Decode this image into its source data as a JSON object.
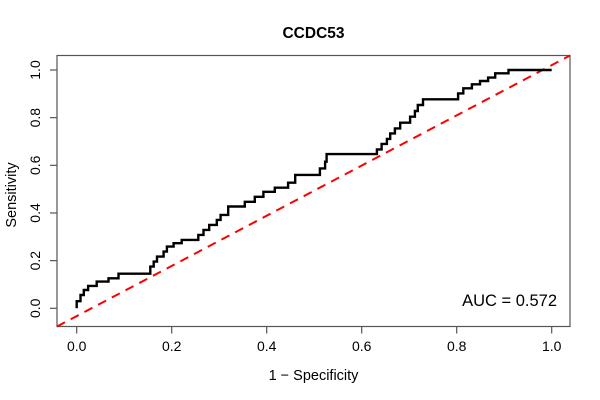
{
  "chart_data": {
    "type": "line",
    "title": "CCDC53",
    "xlabel": "1 − Specificity",
    "ylabel": "Sensitivity",
    "auc_label": "AUC = 0.572",
    "auc": 0.572,
    "xlim": [
      0,
      1
    ],
    "ylim": [
      0,
      1
    ],
    "grid": false,
    "legend_position": "none",
    "x_ticks": [
      0.0,
      0.2,
      0.4,
      0.6,
      0.8,
      1.0
    ],
    "y_ticks": [
      0.0,
      0.2,
      0.4,
      0.6,
      0.8,
      1.0
    ],
    "x_tick_labels": [
      "0.0",
      "0.2",
      "0.4",
      "0.6",
      "0.8",
      "1.0"
    ],
    "y_tick_labels": [
      "0.0",
      "0.2",
      "0.4",
      "0.6",
      "0.8",
      "1.0"
    ],
    "series": [
      {
        "name": "roc-step-curve",
        "style": "step",
        "color": "#000000",
        "line_width": 2.4,
        "points": [
          [
            0.0,
            0.0
          ],
          [
            0.0,
            0.03
          ],
          [
            0.008,
            0.056
          ],
          [
            0.015,
            0.077
          ],
          [
            0.024,
            0.094
          ],
          [
            0.042,
            0.112
          ],
          [
            0.067,
            0.126
          ],
          [
            0.088,
            0.145
          ],
          [
            0.155,
            0.175
          ],
          [
            0.162,
            0.196
          ],
          [
            0.169,
            0.217
          ],
          [
            0.183,
            0.238
          ],
          [
            0.19,
            0.259
          ],
          [
            0.204,
            0.273
          ],
          [
            0.221,
            0.287
          ],
          [
            0.256,
            0.308
          ],
          [
            0.267,
            0.329
          ],
          [
            0.279,
            0.35
          ],
          [
            0.295,
            0.371
          ],
          [
            0.303,
            0.392
          ],
          [
            0.319,
            0.427
          ],
          [
            0.354,
            0.447
          ],
          [
            0.375,
            0.468
          ],
          [
            0.393,
            0.489
          ],
          [
            0.417,
            0.506
          ],
          [
            0.445,
            0.527
          ],
          [
            0.46,
            0.56
          ],
          [
            0.512,
            0.587
          ],
          [
            0.523,
            0.615
          ],
          [
            0.526,
            0.647
          ],
          [
            0.632,
            0.667
          ],
          [
            0.642,
            0.69
          ],
          [
            0.653,
            0.711
          ],
          [
            0.66,
            0.734
          ],
          [
            0.67,
            0.755
          ],
          [
            0.681,
            0.779
          ],
          [
            0.702,
            0.804
          ],
          [
            0.712,
            0.828
          ],
          [
            0.718,
            0.853
          ],
          [
            0.729,
            0.877
          ],
          [
            0.803,
            0.902
          ],
          [
            0.814,
            0.923
          ],
          [
            0.832,
            0.94
          ],
          [
            0.849,
            0.954
          ],
          [
            0.866,
            0.968
          ],
          [
            0.881,
            0.986
          ],
          [
            0.909,
            1.0
          ],
          [
            1.0,
            1.0
          ]
        ]
      },
      {
        "name": "chance-diagonal",
        "style": "dashed",
        "color": "#FF0000",
        "line_width": 2,
        "points": [
          [
            0,
            0
          ],
          [
            1,
            1
          ]
        ]
      }
    ],
    "colors": {
      "curve": "#000000",
      "diagonal": "#FF0000",
      "box": "#555555",
      "text": "#000000",
      "background": "#ffffff"
    }
  }
}
